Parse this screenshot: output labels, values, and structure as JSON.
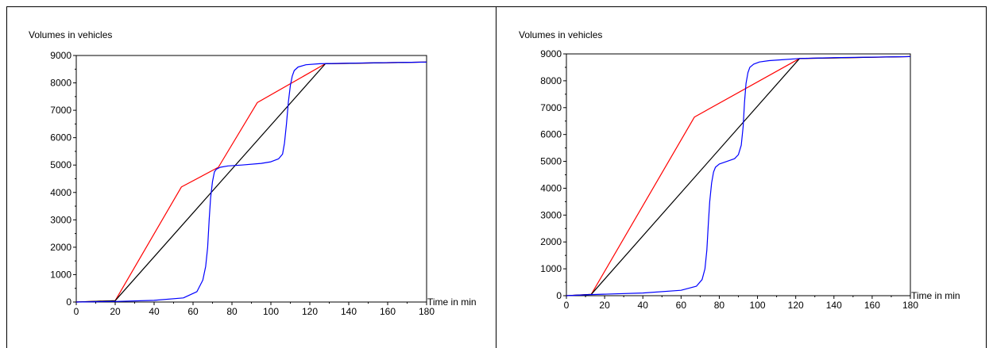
{
  "chart_data": [
    {
      "type": "line",
      "ylabel": "Volumes in vehicles",
      "xlabel": "Time in min",
      "xlim": [
        0,
        180
      ],
      "ylim": [
        0,
        9000
      ],
      "xticks": [
        "0",
        "20",
        "40",
        "60",
        "80",
        "100",
        "120",
        "140",
        "160",
        "180"
      ],
      "yticks": [
        "0",
        "1000",
        "2000",
        "3000",
        "4000",
        "5000",
        "6000",
        "7000",
        "8000",
        "9000"
      ],
      "series": [
        {
          "color": "#ff0000",
          "x": [
            0,
            20,
            54,
            73,
            93,
            128,
            180
          ],
          "y": [
            0,
            50,
            4200,
            4920,
            7280,
            8700,
            8760
          ]
        },
        {
          "color": "#000000",
          "x": [
            0,
            20,
            128,
            180
          ],
          "y": [
            0,
            50,
            8700,
            8760
          ]
        },
        {
          "color": "#0000ff",
          "x": [
            0,
            20,
            40,
            55,
            62,
            65,
            66.5,
            67.5,
            68.3,
            69,
            70,
            71,
            72,
            74,
            78,
            85,
            95,
            100,
            104,
            106,
            107,
            108,
            109,
            110,
            111,
            112,
            114,
            118,
            125,
            140,
            180
          ],
          "y": [
            0,
            20,
            60,
            150,
            380,
            800,
            1300,
            2000,
            3000,
            3800,
            4400,
            4750,
            4850,
            4920,
            4970,
            5000,
            5060,
            5120,
            5230,
            5400,
            5800,
            6500,
            7300,
            7900,
            8250,
            8450,
            8580,
            8660,
            8700,
            8720,
            8760
          ]
        }
      ]
    },
    {
      "type": "line",
      "ylabel": "Volumes in vehicles",
      "xlabel": "Time in min",
      "xlim": [
        0,
        180
      ],
      "ylim": [
        0,
        9000
      ],
      "xticks": [
        "0",
        "20",
        "40",
        "60",
        "80",
        "100",
        "120",
        "140",
        "160",
        "180"
      ],
      "yticks": [
        "0",
        "1000",
        "2000",
        "3000",
        "4000",
        "5000",
        "6000",
        "7000",
        "8000",
        "9000"
      ],
      "series": [
        {
          "color": "#ff0000",
          "x": [
            0,
            13,
            67,
            122,
            180
          ],
          "y": [
            0,
            50,
            6650,
            8830,
            8900
          ]
        },
        {
          "color": "#000000",
          "x": [
            0,
            13,
            122,
            180
          ],
          "y": [
            0,
            50,
            8830,
            8900
          ]
        },
        {
          "color": "#0000ff",
          "x": [
            0,
            13,
            40,
            60,
            68,
            71,
            72.5,
            73.5,
            74.3,
            75,
            76,
            77,
            78,
            80,
            84,
            88,
            90,
            91.5,
            92.5,
            93.2,
            94,
            95,
            96,
            98,
            101,
            106,
            112,
            122,
            140,
            180
          ],
          "y": [
            0,
            40,
            100,
            200,
            350,
            600,
            1000,
            1700,
            2700,
            3500,
            4200,
            4600,
            4780,
            4900,
            5000,
            5100,
            5250,
            5600,
            6300,
            7200,
            7900,
            8300,
            8500,
            8620,
            8700,
            8750,
            8780,
            8830,
            8860,
            8900
          ]
        }
      ]
    }
  ]
}
